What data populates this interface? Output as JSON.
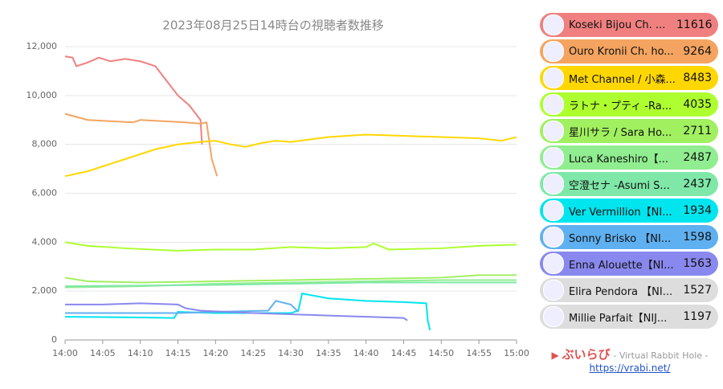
{
  "chart_data": {
    "type": "line",
    "title": "2023年08月25日14時台の視聴者数推移",
    "xlim": [
      0,
      60
    ],
    "xticks": [
      {
        "value": 0,
        "label": "14:00"
      },
      {
        "value": 5,
        "label": "14:05"
      },
      {
        "value": 10,
        "label": "14:10"
      },
      {
        "value": 15,
        "label": "14:15"
      },
      {
        "value": 20,
        "label": "14:20"
      },
      {
        "value": 25,
        "label": "14:25"
      },
      {
        "value": 30,
        "label": "14:30"
      },
      {
        "value": 35,
        "label": "14:35"
      },
      {
        "value": 40,
        "label": "14:40"
      },
      {
        "value": 45,
        "label": "14:45"
      },
      {
        "value": 50,
        "label": "14:50"
      },
      {
        "value": 55,
        "label": "14:55"
      },
      {
        "value": 60,
        "label": "15:00"
      }
    ],
    "ylim": [
      0,
      12000
    ],
    "yticks": [
      0,
      {
        "value": 2000,
        "label": "2,000"
      },
      {
        "value": 4000,
        "label": "4,000"
      },
      {
        "value": 6000,
        "label": "6,000"
      },
      {
        "value": 8000,
        "label": "8,000"
      },
      {
        "value": 10000,
        "label": "10,000"
      },
      {
        "value": 12000,
        "label": "12,000"
      }
    ],
    "grid": true,
    "series": [
      {
        "name": "Koseki Bijou Ch. ...",
        "count": 11616,
        "color": "#f08080",
        "x": [
          0,
          1,
          1.5,
          3,
          4.5,
          6,
          8,
          10,
          12,
          13.5,
          15,
          16.5,
          18,
          18.2
        ],
        "values": [
          11600,
          11550,
          11200,
          11350,
          11550,
          11400,
          11500,
          11400,
          11200,
          10600,
          10000,
          9600,
          9000,
          8000
        ]
      },
      {
        "name": "Ouro Kronii Ch. ho...",
        "count": 9264,
        "color": "#f4a460",
        "x": [
          0,
          3,
          6,
          9,
          10,
          13,
          16,
          18,
          18.8,
          19.5,
          20.2
        ],
        "values": [
          9250,
          9000,
          8950,
          8900,
          9000,
          8950,
          8900,
          8850,
          8900,
          7400,
          6700
        ]
      },
      {
        "name": "Met Channel / 小森...",
        "count": 8483,
        "color": "#ffd700",
        "x": [
          0,
          3,
          6,
          9,
          12,
          15,
          18,
          20,
          22,
          24,
          26,
          28,
          30,
          35,
          40,
          45,
          50,
          55,
          58,
          60
        ],
        "values": [
          6700,
          6900,
          7200,
          7500,
          7800,
          8000,
          8100,
          8150,
          8000,
          7900,
          8050,
          8150,
          8100,
          8300,
          8400,
          8350,
          8300,
          8250,
          8150,
          8300
        ]
      },
      {
        "name": "ラトナ・プティ -Ra...",
        "count": 4035,
        "color": "#adff2f",
        "x": [
          0,
          3,
          8,
          15,
          20,
          25,
          30,
          35,
          40,
          41,
          43,
          50,
          55,
          60
        ],
        "values": [
          4000,
          3850,
          3750,
          3650,
          3700,
          3700,
          3800,
          3750,
          3800,
          3950,
          3700,
          3750,
          3850,
          3900
        ]
      },
      {
        "name": "星川サラ / Sara Ho...",
        "count": 2711,
        "color": "#a0f060",
        "x": [
          0,
          3,
          10,
          20,
          30,
          40,
          50,
          55,
          60
        ],
        "values": [
          2550,
          2400,
          2350,
          2400,
          2450,
          2500,
          2550,
          2650,
          2650
        ]
      },
      {
        "name": "Luca Kaneshiro【...",
        "count": 2487,
        "color": "#90ee90",
        "x": [
          0,
          10,
          20,
          30,
          40,
          50,
          60
        ],
        "values": [
          2150,
          2200,
          2300,
          2350,
          2400,
          2450,
          2450
        ]
      },
      {
        "name": "空澄セナ -Asumi S...",
        "count": 2437,
        "color": "#7fe8a8",
        "x": [
          0,
          20,
          40,
          60
        ],
        "values": [
          2200,
          2250,
          2350,
          2350
        ]
      },
      {
        "name": "Ver Vermillion【NI...",
        "count": 1934,
        "color": "#00e5ee",
        "x": [
          0,
          10,
          14.5,
          15,
          20,
          30,
          31,
          31.5,
          35,
          40,
          45,
          48,
          48.2,
          48.5
        ],
        "values": [
          950,
          920,
          900,
          1150,
          1100,
          1100,
          1200,
          1900,
          1700,
          1600,
          1550,
          1500,
          800,
          400
        ]
      },
      {
        "name": "Sonny Brisko 【NI...",
        "count": 1598,
        "color": "#5fb0f0",
        "x": [
          0,
          10,
          15,
          20,
          27,
          28,
          30,
          31
        ],
        "values": [
          1100,
          1100,
          1100,
          1150,
          1200,
          1600,
          1450,
          1150
        ]
      },
      {
        "name": "Enna Alouette【NI...",
        "count": 1563,
        "color": "#8888ee",
        "x": [
          0,
          5,
          10,
          15,
          16,
          18,
          25,
          30,
          35,
          40,
          45,
          45.5
        ],
        "values": [
          1450,
          1450,
          1500,
          1450,
          1300,
          1200,
          1100,
          1050,
          1000,
          950,
          900,
          800
        ]
      },
      {
        "name": "Elira Pendora 【NI...",
        "count": 1527,
        "color": "#dddddd",
        "x": [],
        "values": []
      },
      {
        "name": "Millie Parfait【NIJ...",
        "count": 1197,
        "color": "#dddddd",
        "x": [],
        "values": []
      }
    ]
  },
  "footer": {
    "brand": "ぶいらび",
    "subtitle": "- Virtual Rabbit Hole -",
    "url": "https://vrabi.net/"
  }
}
